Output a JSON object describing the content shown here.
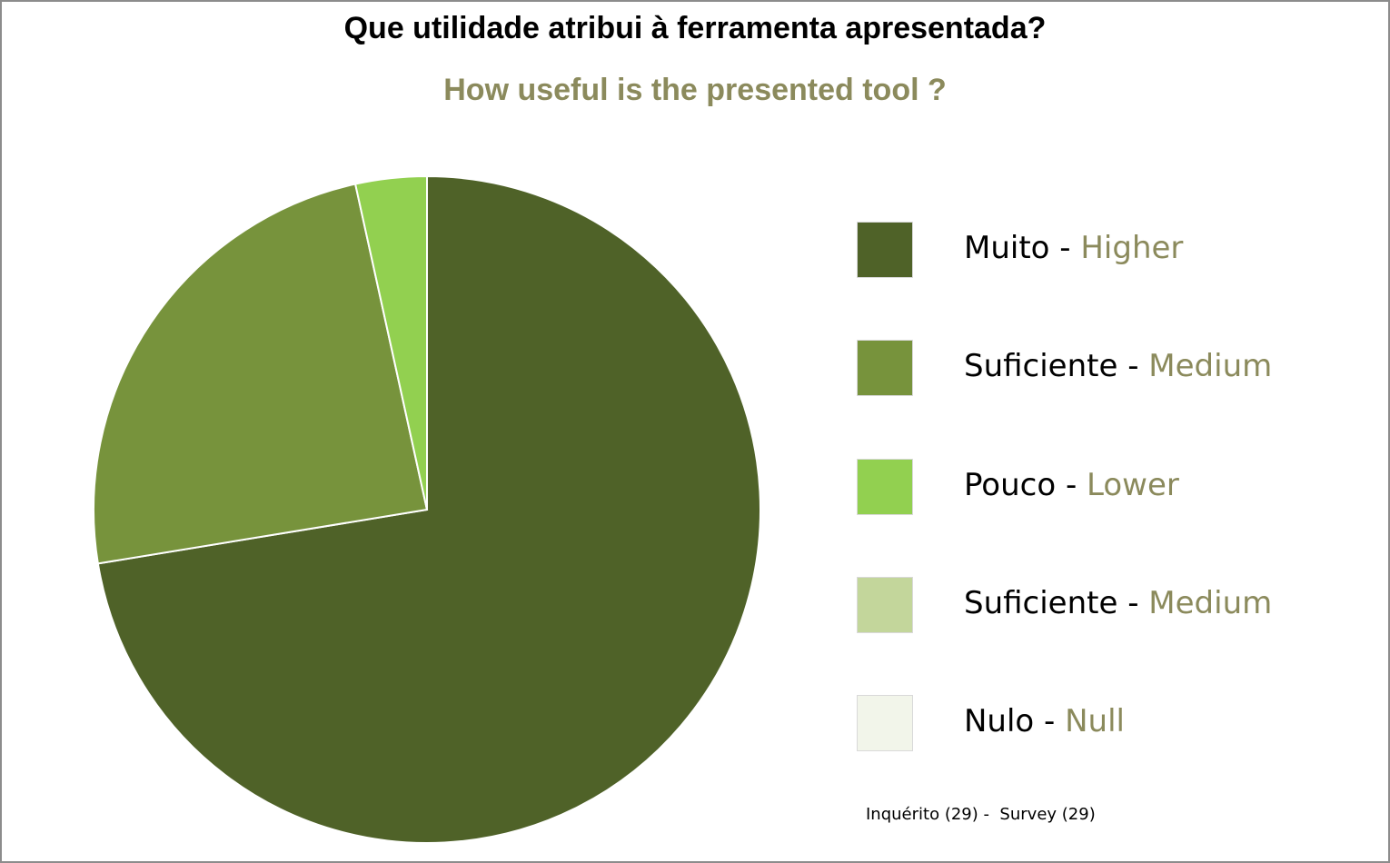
{
  "chart_data": {
    "type": "pie",
    "title": "Que utilidade atribui à ferramenta apresentada?",
    "subtitle": "How useful is the presented tool ?",
    "categories": [
      "Muito - Higher",
      "Suficiente - Medium",
      "Pouco - Lower",
      "Suficiente - Medium",
      "Nulo - Null"
    ],
    "values": [
      21,
      7,
      1,
      0,
      0
    ],
    "legend_placement": "right",
    "note": "Inquérito (29) -  Survey (29)"
  },
  "legend": [
    {
      "pt": "Muito",
      "sep": " - ",
      "en": "Higher",
      "color": "#4f6228"
    },
    {
      "pt": "Suficiente",
      "sep": " - ",
      "en": "Medium",
      "color": "#77933c"
    },
    {
      "pt": "Pouco",
      "sep": " - ",
      "en": "Lower",
      "color": "#92d050"
    },
    {
      "pt": "Suficiente",
      "sep": " - ",
      "en": "Medium",
      "color": "#c3d69b"
    },
    {
      "pt": "Nulo",
      "sep": " - ",
      "en": "Null",
      "color": "#f2f5ea"
    }
  ]
}
